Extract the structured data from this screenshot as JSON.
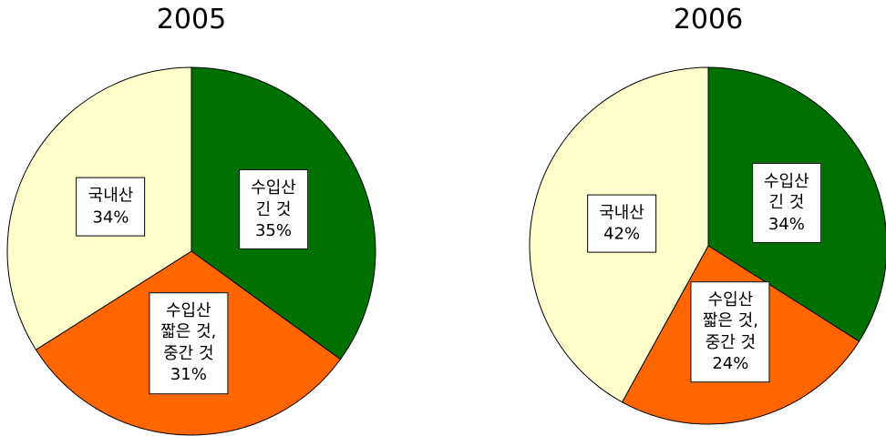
{
  "chart_data": [
    {
      "type": "pie",
      "title": "2005",
      "categories": [
        "수입산\n긴 것",
        "수입산\n짧은 것,\n중간 것",
        "국내산"
      ],
      "values": [
        35,
        31,
        34
      ],
      "value_labels": [
        "35%",
        "31%",
        "34%"
      ],
      "colors": [
        "#007000",
        "#ff6600",
        "#ffffcc"
      ]
    },
    {
      "type": "pie",
      "title": "2006",
      "categories": [
        "수입산\n긴 것",
        "수입산\n짧은 것,\n중간 것",
        "국내산"
      ],
      "values": [
        34,
        24,
        42
      ],
      "value_labels": [
        "34%",
        "24%",
        "42%"
      ],
      "colors": [
        "#007000",
        "#ff6600",
        "#ffffcc"
      ]
    }
  ]
}
